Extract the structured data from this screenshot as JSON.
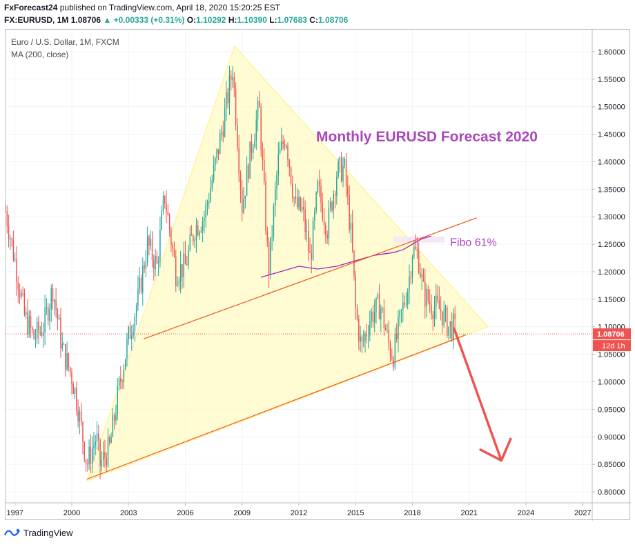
{
  "header": {
    "publisher": "FxForecast24",
    "published_text": "published on TradingView.com, April 18, 2020 15:20:25 EST",
    "symbol": "FX:EURUSD, 1M",
    "last": "1.08706",
    "change": "+0.00333 (+0.31%)",
    "o_label": "O:",
    "o_value": "1.10292",
    "h_label": "H:",
    "h_value": "1.10390",
    "l_label": "L:",
    "l_value": "1.07683",
    "c_label": "C:",
    "c_value": "1.08706"
  },
  "legend": {
    "line1": "Euro / U.S. Dollar, 1M, FXCM",
    "line2": "MA (200, close)"
  },
  "footer": {
    "brand": "TradingView"
  },
  "colors": {
    "up": "#26a69a",
    "down": "#ef5350",
    "ma": "#9c27b0",
    "triangle_fill": "#fff9c4",
    "trend_line": "#f4511e",
    "arrow": "#ef5350",
    "title": "#ab47bc",
    "price_tag": "#ef5350"
  },
  "chart_data": {
    "type": "candlestick",
    "title": "Monthly EURUSD Forecast 2020",
    "fibo_label": "Fibo 61%",
    "price_label": "1.08706",
    "countdown_label": "12d 1h",
    "x_ticks": [
      "1997",
      "2000",
      "2003",
      "2006",
      "2009",
      "2012",
      "2015",
      "2018",
      "2021",
      "2024",
      "2027"
    ],
    "y_ticks": [
      "0.80000",
      "0.85000",
      "0.90000",
      "0.95000",
      "1.00000",
      "1.05000",
      "1.10000",
      "1.15000",
      "1.20000",
      "1.25000",
      "1.30000",
      "1.35000",
      "1.40000",
      "1.45000",
      "1.50000",
      "1.55000",
      "1.60000"
    ],
    "ylim": [
      0.78,
      1.64
    ],
    "xlim": [
      1996.5,
      2027.5
    ],
    "current_price": 1.08706,
    "price_path": [
      [
        1996.5,
        1.31
      ],
      [
        1997.0,
        1.22
      ],
      [
        1997.5,
        1.12
      ],
      [
        1998.0,
        1.08
      ],
      [
        1998.5,
        1.1
      ],
      [
        1999.0,
        1.17
      ],
      [
        1999.5,
        1.06
      ],
      [
        2000.0,
        1.01
      ],
      [
        2000.3,
        0.96
      ],
      [
        2000.8,
        0.85
      ],
      [
        2001.3,
        0.9
      ],
      [
        2001.5,
        0.85
      ],
      [
        2002.0,
        0.88
      ],
      [
        2002.5,
        0.99
      ],
      [
        2003.0,
        1.08
      ],
      [
        2003.5,
        1.15
      ],
      [
        2004.0,
        1.25
      ],
      [
        2004.5,
        1.21
      ],
      [
        2004.9,
        1.34
      ],
      [
        2005.5,
        1.2
      ],
      [
        2006.0,
        1.21
      ],
      [
        2006.5,
        1.28
      ],
      [
        2007.0,
        1.3
      ],
      [
        2007.5,
        1.38
      ],
      [
        2008.0,
        1.47
      ],
      [
        2008.5,
        1.57
      ],
      [
        2009.0,
        1.32
      ],
      [
        2009.5,
        1.43
      ],
      [
        2009.9,
        1.5
      ],
      [
        2010.4,
        1.2
      ],
      [
        2010.9,
        1.4
      ],
      [
        2011.3,
        1.45
      ],
      [
        2011.8,
        1.32
      ],
      [
        2012.2,
        1.31
      ],
      [
        2012.6,
        1.22
      ],
      [
        2013.0,
        1.35
      ],
      [
        2013.5,
        1.28
      ],
      [
        2014.0,
        1.38
      ],
      [
        2014.4,
        1.39
      ],
      [
        2014.8,
        1.25
      ],
      [
        2015.0,
        1.13
      ],
      [
        2015.3,
        1.06
      ],
      [
        2015.8,
        1.12
      ],
      [
        2016.3,
        1.14
      ],
      [
        2016.8,
        1.06
      ],
      [
        2017.0,
        1.05
      ],
      [
        2017.4,
        1.12
      ],
      [
        2017.8,
        1.18
      ],
      [
        2018.0,
        1.24
      ],
      [
        2018.3,
        1.23
      ],
      [
        2018.6,
        1.16
      ],
      [
        2019.0,
        1.14
      ],
      [
        2019.5,
        1.13
      ],
      [
        2019.9,
        1.1
      ],
      [
        2020.2,
        1.1
      ],
      [
        2020.3,
        1.087
      ]
    ],
    "ma_200": [
      [
        2010.0,
        1.19
      ],
      [
        2011.0,
        1.2
      ],
      [
        2012.0,
        1.21
      ],
      [
        2013.0,
        1.205
      ],
      [
        2014.0,
        1.21
      ],
      [
        2015.0,
        1.22
      ],
      [
        2016.0,
        1.23
      ],
      [
        2017.0,
        1.235
      ],
      [
        2017.5,
        1.24
      ],
      [
        2018.0,
        1.25
      ],
      [
        2018.5,
        1.26
      ],
      [
        2019.0,
        1.265
      ]
    ],
    "triangle": [
      [
        2000.8,
        0.82
      ],
      [
        2008.6,
        1.61
      ],
      [
        2022.0,
        1.1
      ]
    ],
    "support_line": [
      [
        2000.8,
        0.823
      ],
      [
        2020.8,
        1.085
      ]
    ],
    "upper_channel": [
      [
        2003.8,
        1.078
      ],
      [
        2021.4,
        1.298
      ]
    ],
    "fibo_zone": {
      "x": [
        2017.0,
        2019.7
      ],
      "y": [
        1.253,
        1.264
      ]
    },
    "forecast_arrow": [
      [
        2020.2,
        1.097
      ],
      [
        2022.7,
        0.857
      ]
    ]
  }
}
